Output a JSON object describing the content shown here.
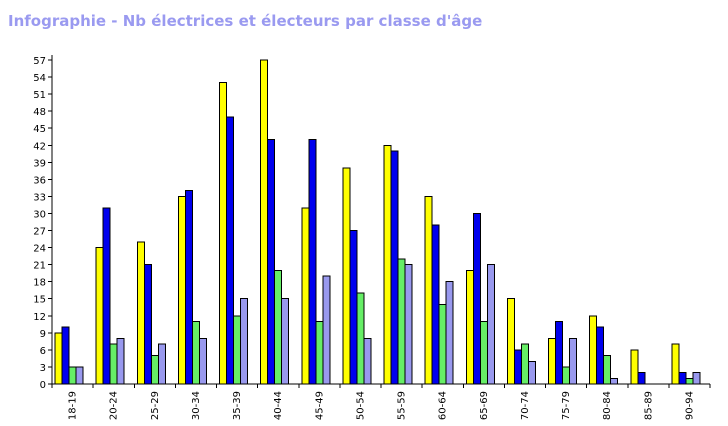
{
  "chart_data": {
    "type": "bar",
    "title": "Infographie - Nb électrices et électeurs par classe d'âge",
    "xlabel": "",
    "ylabel": "",
    "ylim": [
      0,
      57
    ],
    "yticks": [
      0,
      3,
      6,
      9,
      12,
      15,
      18,
      21,
      24,
      27,
      30,
      33,
      36,
      39,
      42,
      45,
      48,
      51,
      54,
      57
    ],
    "grid": false,
    "legend": "none",
    "categories": [
      "18-19",
      "20-24",
      "25-29",
      "30-34",
      "35-39",
      "40-44",
      "45-49",
      "50-54",
      "55-59",
      "60-64",
      "65-69",
      "70-74",
      "75-79",
      "80-84",
      "85-89",
      "90-94"
    ],
    "series": [
      {
        "color": "#ffff00",
        "values": [
          9,
          24,
          25,
          33,
          53,
          57,
          31,
          38,
          42,
          33,
          20,
          15,
          8,
          12,
          6,
          7
        ]
      },
      {
        "color": "#0000ee",
        "values": [
          10,
          31,
          21,
          34,
          47,
          43,
          43,
          27,
          41,
          28,
          30,
          6,
          11,
          10,
          2,
          2
        ]
      },
      {
        "color": "#66ee66",
        "values": [
          3,
          7,
          5,
          11,
          12,
          20,
          11,
          16,
          22,
          14,
          11,
          7,
          3,
          5,
          0,
          1
        ]
      },
      {
        "color": "#9999ee",
        "values": [
          3,
          8,
          7,
          8,
          15,
          15,
          19,
          8,
          21,
          18,
          21,
          4,
          8,
          1,
          0,
          2
        ]
      }
    ]
  }
}
